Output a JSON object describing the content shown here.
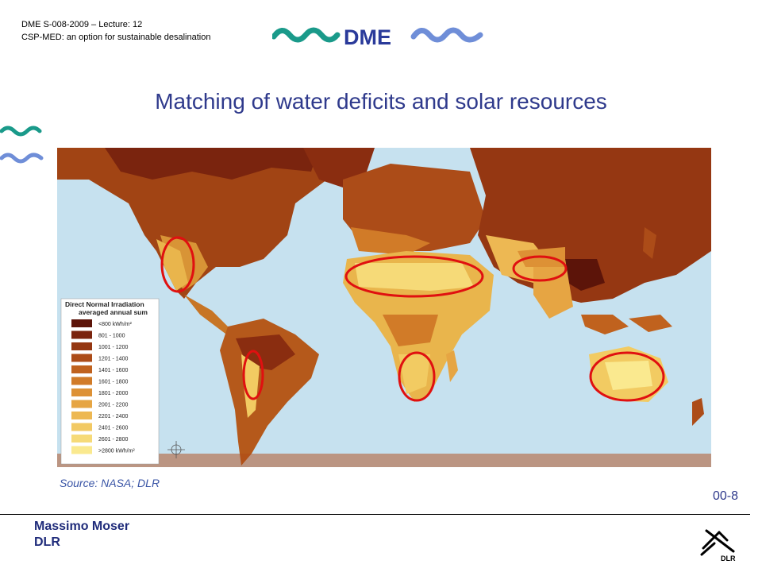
{
  "header": {
    "line1": "DME S-008-2009 – Lecture: 12",
    "line2": "CSP-MED: an option for sustainable desalination",
    "logo_text": "DME"
  },
  "title": "Matching of water deficits and solar resources",
  "map": {
    "legend": {
      "title_line1": "Direct Normal Irradiation",
      "title_line2": "averaged annual sum",
      "entries": [
        {
          "label": "<800 kWh/m²",
          "color": "#5c1409"
        },
        {
          "label": "801 - 1000",
          "color": "#7a240e"
        },
        {
          "label": "1001 - 1200",
          "color": "#953712"
        },
        {
          "label": "1201 - 1400",
          "color": "#ac4c18"
        },
        {
          "label": "1401 - 1600",
          "color": "#c0621e"
        },
        {
          "label": "1601 - 1800",
          "color": "#d17b28"
        },
        {
          "label": "1801 - 2000",
          "color": "#dd9135"
        },
        {
          "label": "2001 - 2200",
          "color": "#e6a543"
        },
        {
          "label": "2201 - 2400",
          "color": "#edb853"
        },
        {
          "label": "2401 - 2600",
          "color": "#f2c963"
        },
        {
          "label": "2601 - 2800",
          "color": "#f6da78"
        },
        {
          "label": ">2800 kWh/m²",
          "color": "#fae98f"
        }
      ]
    },
    "ocean_color": "#c6e1ef",
    "highlight_color": "#e01010"
  },
  "source": "Source: NASA; DLR",
  "slide_number": "00-8",
  "author": {
    "name": "Massimo Moser",
    "org": "DLR"
  },
  "dlr_logo_text": "DLR",
  "colors": {
    "title": "#2f3a8c",
    "wave_teal": "#1a9a8a",
    "wave_blue": "#6f8ed8",
    "logo_text": "#2a3a9a"
  }
}
